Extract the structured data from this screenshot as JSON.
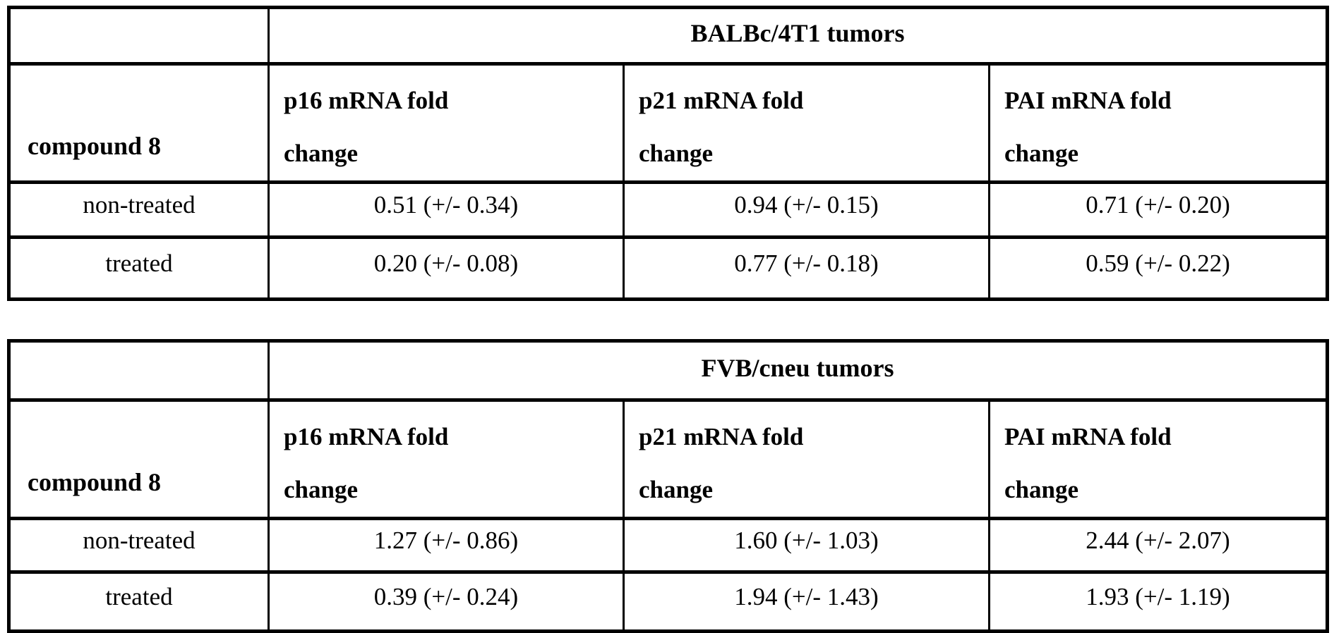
{
  "page": {
    "background": "#ffffff",
    "text_color": "#000000",
    "border_color": "#000000"
  },
  "tables": [
    {
      "group_header": "BALBc/4T1 tumors",
      "row_label_header": "compound 8",
      "column_headers": [
        "p16 mRNA fold\nchange",
        "p21 mRNA fold\nchange",
        "PAI mRNA fold\nchange"
      ],
      "rows": [
        {
          "label": "non-treated",
          "values": [
            "0.51 (+/- 0.34)",
            "0.94 (+/- 0.15)",
            "0.71 (+/- 0.20)"
          ]
        },
        {
          "label": "treated",
          "values": [
            "0.20 (+/- 0.08)",
            "0.77 (+/- 0.18)",
            "0.59 (+/- 0.22)"
          ]
        }
      ]
    },
    {
      "group_header": "FVB/cneu tumors",
      "row_label_header": "compound 8",
      "column_headers": [
        "p16 mRNA fold\nchange",
        "p21 mRNA fold\nchange",
        "PAI mRNA fold\nchange"
      ],
      "rows": [
        {
          "label": "non-treated",
          "values": [
            "1.27 (+/- 0.86)",
            "1.60 (+/- 1.03)",
            "2.44 (+/- 2.07)"
          ]
        },
        {
          "label": "treated",
          "values": [
            "0.39 (+/- 0.24)",
            "1.94 (+/- 1.43)",
            "1.93 (+/- 1.19)"
          ]
        }
      ]
    }
  ]
}
